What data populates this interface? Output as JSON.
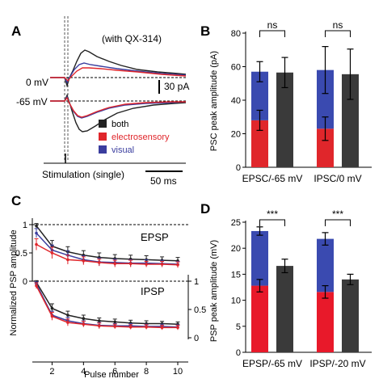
{
  "panels": {
    "A": {
      "letter": "A",
      "annotation": "(with QX-314)",
      "label_0mv": "0 mV",
      "label_65mv": "-65 mV",
      "scalebar_y": "30 pA",
      "scalebar_x": "50 ms",
      "stimulation": "Stimulation (single)",
      "legend": [
        {
          "name": "both",
          "color": "#222222"
        },
        {
          "name": "electrosensory",
          "color": "#e0262b"
        },
        {
          "name": "visual",
          "color": "#3a3d9e"
        }
      ]
    },
    "B": {
      "letter": "B"
    },
    "C": {
      "letter": "C"
    },
    "D": {
      "letter": "D"
    }
  },
  "chart_data": [
    {
      "panel": "B",
      "type": "bar",
      "ylabel": "PSC peak amplitude (pA)",
      "ylim": [
        0,
        80
      ],
      "yticks": [
        0,
        20,
        40,
        60,
        80
      ],
      "categories": [
        "EPSC/-65 mV",
        "IPSC/0 mV"
      ],
      "stacked": [
        {
          "electrosensory": 28,
          "visual": 29,
          "total": 57,
          "err_total": 6,
          "err_electro": 6
        },
        {
          "electrosensory": 23,
          "visual": 35,
          "total": 58,
          "err_total": 14,
          "err_electro": 7
        }
      ],
      "both": [
        {
          "value": 56.5,
          "err": 9
        },
        {
          "value": 55.5,
          "err": 15
        }
      ],
      "significance": [
        "ns",
        "ns"
      ],
      "colors": {
        "electrosensory": "#e0262b",
        "visual": "#3a4ab0",
        "both": "#3a3a3a"
      }
    },
    {
      "panel": "C",
      "type": "line",
      "xlabel": "Pulse number",
      "ylabel": "Normalized PSP amplitude",
      "x": [
        1,
        2,
        3,
        4,
        5,
        6,
        7,
        8,
        9,
        10
      ],
      "xticks": [
        2,
        4,
        6,
        8,
        10
      ],
      "top_label": "EPSP",
      "bottom_label": "IPSP",
      "left_ticks": [
        "1",
        "0.5",
        "0"
      ],
      "right_ticks": [
        "1",
        "0.5",
        "0"
      ],
      "epsp": [
        {
          "name": "both",
          "color": "#222222",
          "values": [
            0.98,
            0.62,
            0.52,
            0.46,
            0.42,
            0.4,
            0.39,
            0.38,
            0.37,
            0.36
          ],
          "errs": [
            0.04,
            0.1,
            0.09,
            0.08,
            0.08,
            0.07,
            0.07,
            0.07,
            0.06,
            0.06
          ]
        },
        {
          "name": "visual",
          "color": "#3a3d9e",
          "values": [
            0.85,
            0.55,
            0.46,
            0.38,
            0.34,
            0.33,
            0.32,
            0.32,
            0.31,
            0.3
          ],
          "errs": [
            0.08,
            0.09,
            0.08,
            0.07,
            0.07,
            0.06,
            0.06,
            0.06,
            0.06,
            0.05
          ]
        },
        {
          "name": "electrosensory",
          "color": "#e0262b",
          "values": [
            0.65,
            0.5,
            0.38,
            0.36,
            0.33,
            0.31,
            0.31,
            0.3,
            0.3,
            0.29
          ],
          "errs": [
            0.1,
            0.1,
            0.08,
            0.07,
            0.06,
            0.06,
            0.06,
            0.05,
            0.05,
            0.05
          ]
        }
      ],
      "ipsp": [
        {
          "name": "both",
          "color": "#222222",
          "values": [
            0.98,
            0.52,
            0.4,
            0.34,
            0.3,
            0.28,
            0.26,
            0.25,
            0.25,
            0.24
          ],
          "errs": [
            0.03,
            0.08,
            0.07,
            0.06,
            0.05,
            0.05,
            0.05,
            0.05,
            0.04,
            0.04
          ]
        },
        {
          "name": "visual",
          "color": "#3a3d9e",
          "values": [
            0.95,
            0.4,
            0.3,
            0.25,
            0.22,
            0.21,
            0.21,
            0.2,
            0.2,
            0.19
          ],
          "errs": [
            0.04,
            0.07,
            0.06,
            0.05,
            0.05,
            0.04,
            0.04,
            0.04,
            0.04,
            0.04
          ]
        },
        {
          "name": "electrosensory",
          "color": "#e0262b",
          "values": [
            0.92,
            0.38,
            0.27,
            0.24,
            0.21,
            0.2,
            0.19,
            0.19,
            0.18,
            0.18
          ],
          "errs": [
            0.05,
            0.07,
            0.06,
            0.05,
            0.05,
            0.04,
            0.04,
            0.04,
            0.04,
            0.04
          ]
        }
      ]
    },
    {
      "panel": "D",
      "type": "bar",
      "ylabel": "PSP peak amplitude (mV)",
      "ylim": [
        0,
        25
      ],
      "yticks": [
        0,
        5,
        10,
        15,
        20,
        25
      ],
      "categories": [
        "EPSP/-65 mV",
        "IPSP/-20 mV"
      ],
      "stacked": [
        {
          "electrosensory": 12.8,
          "visual": 10.5,
          "total": 23.3,
          "err_total": 0.8,
          "err_electro": 1.2
        },
        {
          "electrosensory": 11.6,
          "visual": 10.2,
          "total": 21.8,
          "err_total": 1.2,
          "err_electro": 1.2
        }
      ],
      "both": [
        {
          "value": 16.6,
          "err": 1.3
        },
        {
          "value": 14.0,
          "err": 1.0
        }
      ],
      "significance": [
        "***",
        "***"
      ],
      "colors": {
        "electrosensory": "#e8192a",
        "visual": "#3a4ab0",
        "both": "#3a3a3a"
      }
    }
  ]
}
